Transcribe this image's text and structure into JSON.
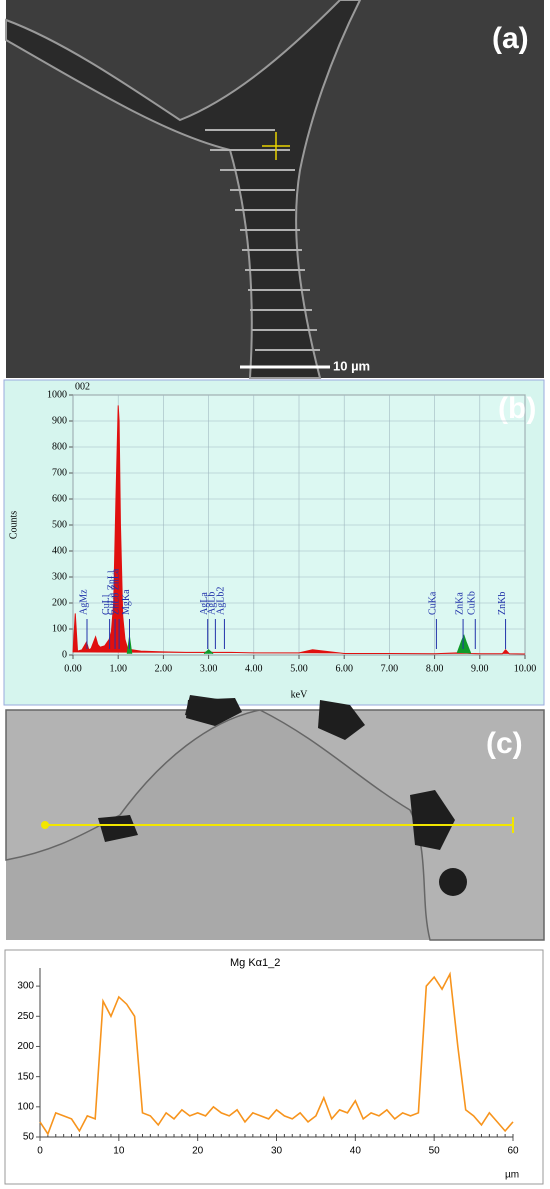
{
  "panel_labels": [
    "(a)",
    "(b)",
    "(c)"
  ],
  "scale_bar": "10 µm",
  "chart_data": [
    {
      "type": "area",
      "title": "002",
      "xlabel": "keV",
      "ylabel": "Counts",
      "x": [
        0,
        0.05,
        0.1,
        0.2,
        0.3,
        0.35,
        0.4,
        0.5,
        0.55,
        0.6,
        0.7,
        0.8,
        0.85,
        0.9,
        0.95,
        1.0,
        1.02,
        1.05,
        1.1,
        1.15,
        1.2,
        1.25,
        1.3,
        1.5,
        2.0,
        2.5,
        2.9,
        3.0,
        3.1,
        3.5,
        4.0,
        5.0,
        5.3,
        6.0,
        7.0,
        8.0,
        8.5,
        8.6,
        8.65,
        8.7,
        8.8,
        9.0,
        9.5,
        9.57,
        9.65,
        10.0
      ],
      "series": [
        {
          "color": "#e0100f",
          "values": [
            10,
            160,
            15,
            20,
            50,
            20,
            25,
            70,
            40,
            30,
            35,
            60,
            90,
            200,
            600,
            960,
            900,
            500,
            150,
            60,
            30,
            25,
            20,
            15,
            12,
            10,
            10,
            12,
            10,
            10,
            8,
            8,
            20,
            6,
            6,
            5,
            8,
            8,
            8,
            8,
            6,
            5,
            5,
            20,
            5,
            4
          ]
        },
        {
          "color": "#109a2a",
          "values": [
            null,
            null,
            null,
            null,
            null,
            null,
            null,
            null,
            null,
            null,
            null,
            null,
            null,
            null,
            null,
            null,
            null,
            null,
            null,
            null,
            5,
            70,
            5,
            null,
            null,
            null,
            5,
            20,
            5,
            null,
            null,
            null,
            null,
            null,
            null,
            null,
            8,
            55,
            75,
            50,
            6,
            null,
            null,
            null,
            null,
            null
          ]
        }
      ],
      "annotations": [
        {
          "text": "AgMz",
          "x": 0.31
        },
        {
          "text": "CuLl",
          "x": 0.81
        },
        {
          "text": "CuLa ZnLl",
          "x": 0.93
        },
        {
          "text": "ZnLb ZnLa",
          "x": 1.02
        },
        {
          "text": "MgKa",
          "x": 1.25
        },
        {
          "text": "AgLa",
          "x": 2.98
        },
        {
          "text": "AgLb",
          "x": 3.15
        },
        {
          "text": "AgLb2",
          "x": 3.35
        },
        {
          "text": "CuKa",
          "x": 8.04
        },
        {
          "text": "ZnKa",
          "x": 8.63
        },
        {
          "text": "CuKb",
          "x": 8.9
        },
        {
          "text": "ZnKb",
          "x": 9.57
        }
      ],
      "xlim": [
        0,
        10
      ],
      "xticks": [
        {
          "value": 0,
          "label": "0.00"
        },
        {
          "value": 1,
          "label": "1.00"
        },
        {
          "value": 2,
          "label": "2.00"
        },
        {
          "value": 3,
          "label": "3.00"
        },
        {
          "value": 4,
          "label": "4.00"
        },
        {
          "value": 5,
          "label": "5.00"
        },
        {
          "value": 6,
          "label": "6.00"
        },
        {
          "value": 7,
          "label": "7.00"
        },
        {
          "value": 8,
          "label": "8.00"
        },
        {
          "value": 9,
          "label": "9.00"
        },
        {
          "value": 10,
          "label": "10.00"
        }
      ],
      "ylim": [
        0,
        1000
      ],
      "yticks": [
        0,
        100,
        200,
        300,
        400,
        500,
        600,
        700,
        800,
        900,
        1000
      ],
      "grid": true
    },
    {
      "type": "line",
      "title": "Mg Kα1_2",
      "xlabel": "µm",
      "x": [
        0,
        1,
        2,
        3,
        4,
        5,
        6,
        7,
        8,
        9,
        10,
        11,
        12,
        13,
        14,
        15,
        16,
        17,
        18,
        19,
        20,
        21,
        22,
        23,
        24,
        25,
        26,
        27,
        28,
        29,
        30,
        31,
        32,
        33,
        34,
        35,
        36,
        37,
        38,
        39,
        40,
        41,
        42,
        43,
        44,
        45,
        46,
        47,
        48,
        49,
        50,
        51,
        52,
        53,
        54,
        55,
        56,
        57,
        58,
        59,
        60
      ],
      "series": [
        {
          "color": "#f7941d",
          "values": [
            75,
            55,
            90,
            85,
            80,
            60,
            85,
            80,
            275,
            250,
            282,
            270,
            250,
            90,
            85,
            70,
            90,
            80,
            95,
            85,
            90,
            85,
            100,
            90,
            85,
            95,
            75,
            90,
            85,
            80,
            95,
            85,
            80,
            90,
            75,
            85,
            115,
            80,
            95,
            90,
            110,
            80,
            90,
            85,
            95,
            80,
            90,
            85,
            90,
            300,
            315,
            295,
            320,
            200,
            95,
            85,
            70,
            90,
            75,
            60,
            75
          ]
        }
      ],
      "xlim": [
        0,
        60
      ],
      "xticks": [
        0,
        10,
        20,
        30,
        40,
        50,
        60
      ],
      "ylim": [
        50,
        330
      ],
      "yticks": [
        50,
        100,
        150,
        200,
        250,
        300
      ],
      "grid": false
    }
  ]
}
